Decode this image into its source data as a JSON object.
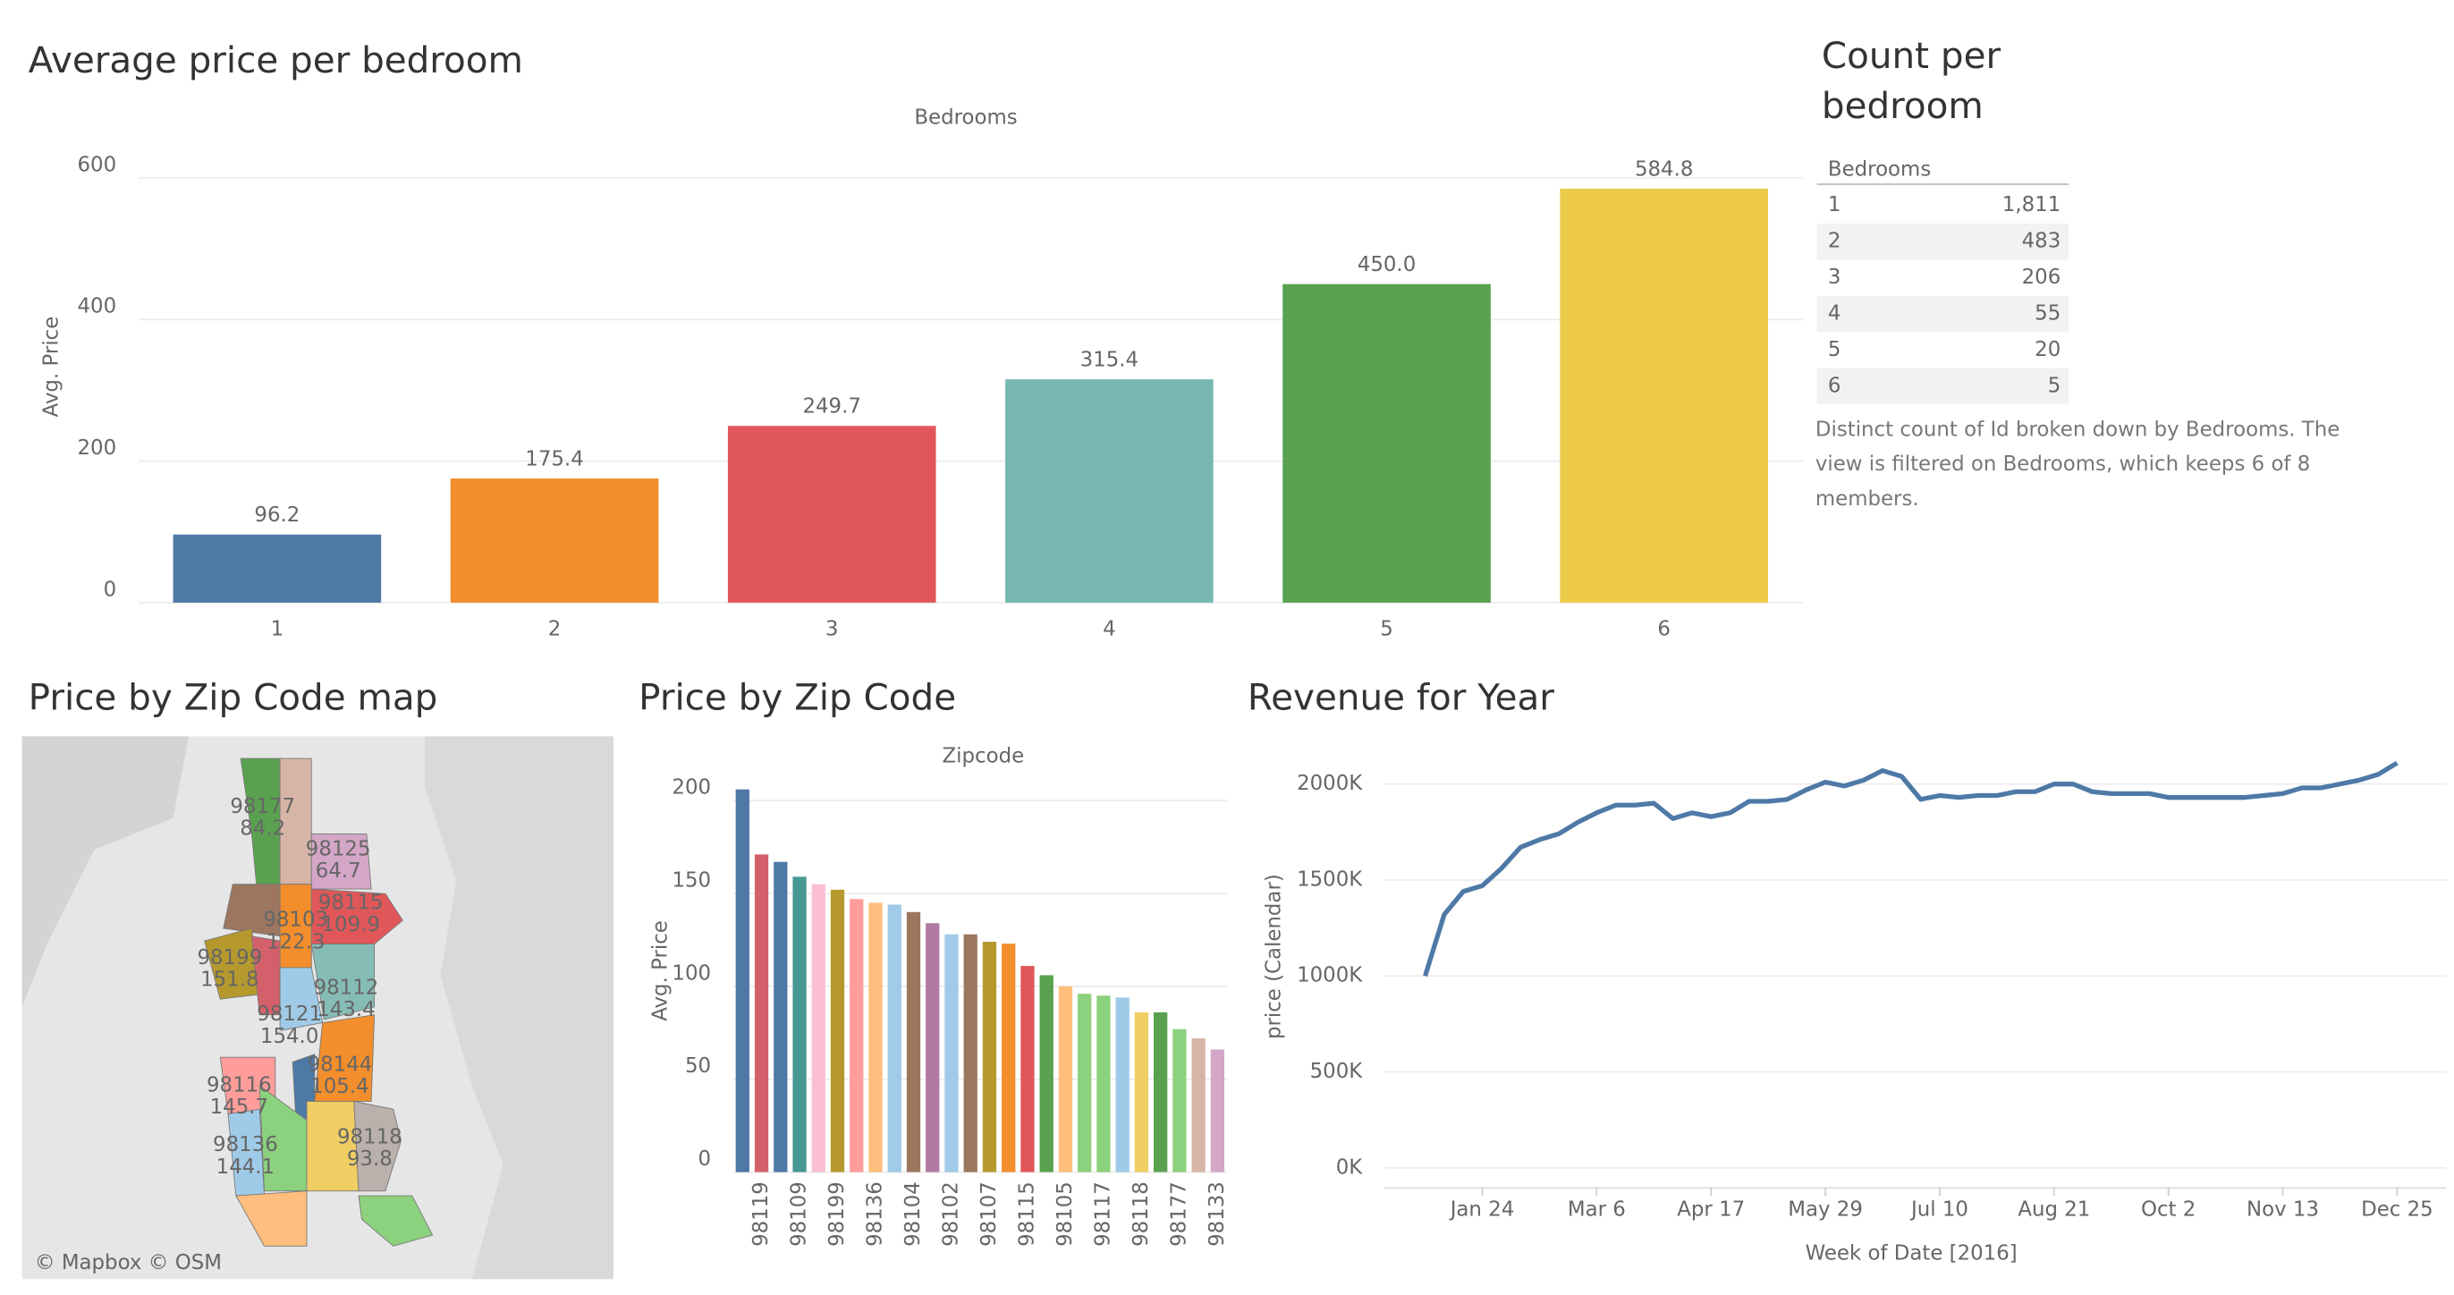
{
  "chart_data": [
    {
      "type": "bar",
      "title": "Average price per bedroom",
      "header": "Bedrooms",
      "y_label": "Avg. Price",
      "categories": [
        "1",
        "2",
        "3",
        "4",
        "5",
        "6"
      ],
      "values": [
        96.2,
        175.4,
        249.7,
        315.4,
        450.0,
        584.8
      ],
      "value_labels": [
        "96.2",
        "175.4",
        "249.7",
        "315.4",
        "450.0",
        "584.8"
      ],
      "colors": [
        "#4e79a7",
        "#f28e2b",
        "#e15759",
        "#76b7b2",
        "#59a14f",
        "#edc948"
      ],
      "ylim": [
        0,
        640
      ],
      "yticks": [
        0,
        200,
        400,
        600
      ],
      "grid": true
    },
    {
      "type": "bar",
      "title": "Price by Zip Code",
      "header": "Zipcode",
      "y_label": "Avg. Price",
      "categories": [
        null,
        "98119",
        null,
        "98109",
        null,
        "98199",
        null,
        "98136",
        null,
        "98104",
        null,
        "98102",
        null,
        "98107",
        null,
        "98115",
        null,
        "98105",
        null,
        "98117",
        null,
        "98118",
        null,
        "98177",
        null,
        "98133"
      ],
      "values": [
        206,
        171,
        167,
        159,
        155,
        152,
        147,
        145,
        144,
        140,
        134,
        128,
        128,
        124,
        123,
        111,
        106,
        100,
        96,
        95,
        94,
        86,
        86,
        77,
        72,
        66
      ],
      "colors": [
        "#4e79a7",
        "#d4606b",
        "#4e79a7",
        "#499894",
        "#fabfd2",
        "#b6992d",
        "#ff9d9a",
        "#ffbe7d",
        "#a0cbe8",
        "#9d7660",
        "#b07aa1",
        "#a0cbe8",
        "#9d7660",
        "#b6992d",
        "#f28e2b",
        "#e15759",
        "#59a14f",
        "#ffbe7d",
        "#8cd17d",
        "#8cd17d",
        "#a0cbe8",
        "#f1ce63",
        "#59a14f",
        "#8cd17d",
        "#d7b5a6",
        "#d4a6c8"
      ],
      "ylim": [
        0,
        210
      ],
      "yticks": [
        0,
        50,
        100,
        150,
        200
      ],
      "grid": true
    },
    {
      "type": "line",
      "title": "Revenue for Year",
      "y_label": "price (Calendar)",
      "x_label": "Week of Date [2016]",
      "x": [
        "2016-01-03",
        "2016-01-10",
        "2016-01-17",
        "2016-01-24",
        "2016-01-31",
        "2016-02-07",
        "2016-02-14",
        "2016-02-21",
        "2016-02-28",
        "2016-03-06",
        "2016-03-13",
        "2016-03-20",
        "2016-03-27",
        "2016-04-03",
        "2016-04-10",
        "2016-04-17",
        "2016-04-24",
        "2016-05-01",
        "2016-05-08",
        "2016-05-15",
        "2016-05-22",
        "2016-05-29",
        "2016-06-05",
        "2016-06-12",
        "2016-06-19",
        "2016-06-26",
        "2016-07-03",
        "2016-07-10",
        "2016-07-17",
        "2016-07-24",
        "2016-07-31",
        "2016-08-07",
        "2016-08-14",
        "2016-08-21",
        "2016-08-28",
        "2016-09-04",
        "2016-09-11",
        "2016-09-18",
        "2016-09-25",
        "2016-10-02",
        "2016-10-09",
        "2016-10-16",
        "2016-10-23",
        "2016-10-30",
        "2016-11-06",
        "2016-11-13",
        "2016-11-20",
        "2016-11-27",
        "2016-12-04",
        "2016-12-11",
        "2016-12-18",
        "2016-12-25"
      ],
      "series": [
        {
          "name": "price (Calendar)",
          "color": "#4e79a7",
          "values": [
            1000000,
            1320000,
            1440000,
            1470000,
            1560000,
            1670000,
            1710000,
            1740000,
            1800000,
            1850000,
            1890000,
            1890000,
            1900000,
            1820000,
            1850000,
            1830000,
            1850000,
            1910000,
            1910000,
            1920000,
            1970000,
            2010000,
            1990000,
            2020000,
            2070000,
            2040000,
            1920000,
            1940000,
            1930000,
            1940000,
            1940000,
            1960000,
            1960000,
            2000000,
            2000000,
            1960000,
            1950000,
            1950000,
            1950000,
            1930000,
            1930000,
            1930000,
            1930000,
            1930000,
            1940000,
            1950000,
            1980000,
            1980000,
            2000000,
            2020000,
            2050000,
            2110000
          ]
        }
      ],
      "xlim": [
        "2015-12-19",
        "2017-01-12"
      ],
      "xticks": [
        {
          "value": "2016-01-24",
          "label": "Jan 24"
        },
        {
          "value": "2016-03-06",
          "label": "Mar 6"
        },
        {
          "value": "2016-04-17",
          "label": "Apr 17"
        },
        {
          "value": "2016-05-29",
          "label": "May 29"
        },
        {
          "value": "2016-07-10",
          "label": "Jul 10"
        },
        {
          "value": "2016-08-21",
          "label": "Aug 21"
        },
        {
          "value": "2016-10-02",
          "label": "Oct 2"
        },
        {
          "value": "2016-11-13",
          "label": "Nov 13"
        },
        {
          "value": "2016-12-25",
          "label": "Dec 25"
        }
      ],
      "ylim": [
        -80000,
        2150000
      ],
      "yticks": [
        {
          "value": 0,
          "label": "0K"
        },
        {
          "value": 500000,
          "label": "500K"
        },
        {
          "value": 1000000,
          "label": "1000K"
        },
        {
          "value": 1500000,
          "label": "1500K"
        },
        {
          "value": 2000000,
          "label": "2000K"
        }
      ],
      "grid": true
    }
  ],
  "table": {
    "title": "Count per bedroom",
    "header": "Bedrooms",
    "rows": [
      [
        "1",
        "1,811"
      ],
      [
        "2",
        "483"
      ],
      [
        "3",
        "206"
      ],
      [
        "4",
        "55"
      ],
      [
        "5",
        "20"
      ],
      [
        "6",
        "5"
      ]
    ],
    "caption": "Distinct count of Id broken down by Bedrooms. The view is filtered on Bedrooms, which keeps 6 of 8 members."
  },
  "map": {
    "title": "Price by Zip Code map",
    "attribution": "© Mapbox © OSM",
    "regions": [
      {
        "zip": "98177",
        "value": "84.2"
      },
      {
        "zip": "98125",
        "value": "64.7"
      },
      {
        "zip": "98103",
        "value": "122.3"
      },
      {
        "zip": "98115",
        "value": "109.9"
      },
      {
        "zip": "98199",
        "value": "151.8"
      },
      {
        "zip": "98112",
        "value": "143.4"
      },
      {
        "zip": "98121",
        "value": "154.0"
      },
      {
        "zip": "98144",
        "value": "105.4"
      },
      {
        "zip": "98116",
        "value": "145.7"
      },
      {
        "zip": "98136",
        "value": "144.1"
      },
      {
        "zip": "98118",
        "value": "93.8"
      }
    ]
  }
}
